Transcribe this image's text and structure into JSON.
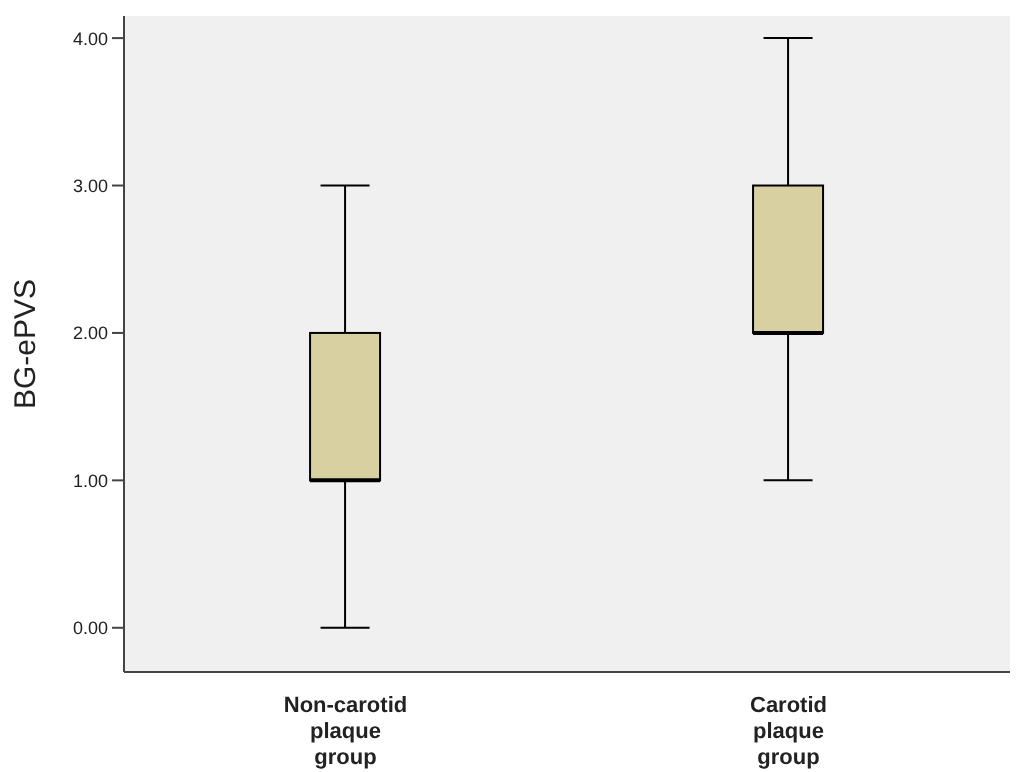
{
  "chart_data": {
    "type": "box",
    "ylabel": "BG-ePVS",
    "categories": [
      "Non-carotid plaque group",
      "Carotid plaque group"
    ],
    "boxes": [
      {
        "low": 0,
        "q1": 1,
        "median": 1,
        "q3": 2,
        "high": 3
      },
      {
        "low": 1,
        "q1": 2,
        "median": 2,
        "q3": 3,
        "high": 4
      }
    ],
    "color": "#d8d0a0",
    "ylim": [
      -0.3,
      4.15
    ],
    "yticks": [
      {
        "value": 0,
        "label": "0.00"
      },
      {
        "value": 1,
        "label": "1.00"
      },
      {
        "value": 2,
        "label": "2.00"
      },
      {
        "value": 3,
        "label": "3.00"
      },
      {
        "value": 4,
        "label": "4.00"
      }
    ],
    "grid": false
  }
}
